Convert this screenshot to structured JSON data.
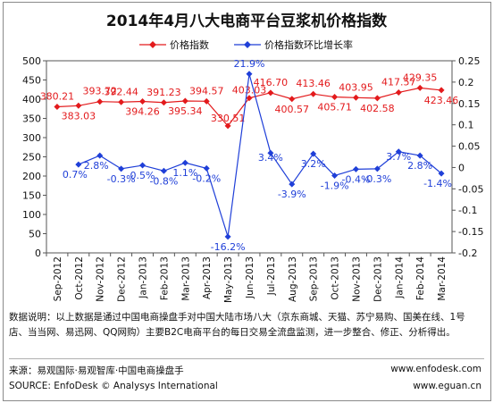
{
  "chart_data": {
    "type": "line",
    "title": "2014年4月八大电商平台豆浆机价格指数",
    "categories": [
      "Sep-2012",
      "Oct-2012",
      "Nov-2012",
      "Dec-2012",
      "Jan-2013",
      "Feb-2013",
      "Mar-2013",
      "Apr-2013",
      "May-2013",
      "Jun-2013",
      "Jul-2013",
      "Aug-2013",
      "Sep-2013",
      "Oct-2013",
      "Nov-2013",
      "Dec-2013",
      "Jan-2014",
      "Feb-2014",
      "Mar-2014"
    ],
    "series": [
      {
        "name": "价格指数",
        "axis": "left",
        "color": "#e31a1c",
        "values": [
          380.21,
          383.03,
          393.72,
          392.44,
          394.26,
          391.23,
          395.34,
          394.57,
          330.51,
          403.03,
          416.7,
          400.57,
          413.46,
          405.71,
          403.95,
          402.58,
          417.57,
          429.35,
          423.46
        ],
        "labels": [
          "380.21",
          "383.03",
          "393.72",
          "392.44",
          "394.26",
          "391.23",
          "395.34",
          "394.57",
          "330.51",
          "403.03",
          "416.70",
          "400.57",
          "413.46",
          "405.71",
          "403.95",
          "402.58",
          "417.57",
          "429.35",
          "423.46"
        ]
      },
      {
        "name": "价格指数环比增长率",
        "axis": "right",
        "color": "#1f3fd8",
        "values": [
          null,
          0.007,
          0.028,
          -0.003,
          0.005,
          -0.008,
          0.011,
          -0.002,
          -0.162,
          0.219,
          0.034,
          -0.039,
          0.032,
          -0.019,
          -0.004,
          -0.003,
          0.037,
          0.028,
          -0.014
        ],
        "labels": [
          "",
          "0.7%",
          "2.8%",
          "-0.3%",
          "0.5%",
          "-0.8%",
          "1.1%",
          "-0.2%",
          "-16.2%",
          "21.9%",
          "3.4%",
          "-3.9%",
          "3.2%",
          "-1.9%",
          "-0.4%",
          "-0.3%",
          "3.7%",
          "2.8%",
          "-1.4%"
        ]
      }
    ],
    "y_left": {
      "min": 0,
      "max": 500,
      "ticks": [
        "0",
        "50",
        "100",
        "150",
        "200",
        "250",
        "300",
        "350",
        "400",
        "450",
        "500"
      ]
    },
    "y_right": {
      "min": -0.2,
      "max": 0.25,
      "ticks": [
        "-0.2",
        "-0.15",
        "-0.1",
        "-0.05",
        "0",
        "0.05",
        "0.1",
        "0.15",
        "0.2",
        "0.25"
      ]
    },
    "legend_position": "top",
    "grid": false
  },
  "notes": {
    "text": "数据说明：以上数据是通过中国电商操盘手对中国大陆市场八大（京东商城、天猫、苏宁易购、国美在线、1号店、当当网、易迅网、QQ网购）主要B2C电商平台的每日交易全流盘监测，进一步整合、修正、分析得出。",
    "source_cn": "来源：易观国际·易观智库·中国电商操盘手",
    "source_en": "SOURCE: EnfoDesk © Analysys International",
    "site1": "www.enfodesk.com",
    "site2": "www.eguan.cn"
  }
}
